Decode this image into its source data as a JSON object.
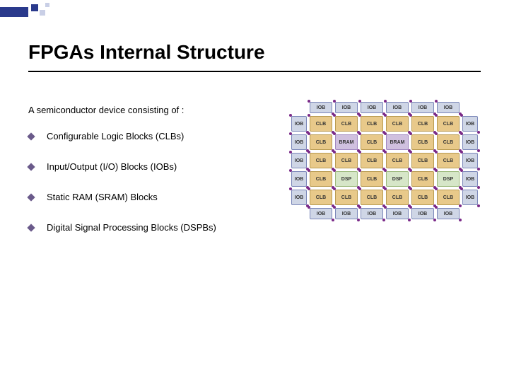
{
  "accent_color": "#2a3a8c",
  "accent_light": "#c9cfe6",
  "title": "FPGAs Internal Structure",
  "intro": "A semiconductor device consisting of :",
  "bullet_marker_color": "#6a5a8a",
  "bullets": [
    "Configurable Logic Blocks (CLBs)",
    "Input/Output (I/O) Blocks (IOBs)",
    "Static RAM (SRAM) Blocks",
    "Digital Signal Processing Blocks (DSPBs)"
  ],
  "diagram": {
    "interconnect_color": "#7a2a88",
    "block_types": {
      "IOB": {
        "fill": "#cfd6e6",
        "border": "#7a86b8",
        "text": "#333"
      },
      "CLB": {
        "fill": "#e8c98a",
        "border": "#b89a50",
        "text": "#333"
      },
      "BRAM": {
        "fill": "#d0c0df",
        "border": "#a086c0",
        "text": "#333"
      },
      "DSP": {
        "fill": "#d6e6c8",
        "border": "#9ab87a",
        "text": "#333"
      }
    },
    "top_row": [
      "IOB",
      "IOB",
      "IOB",
      "IOB",
      "IOB",
      "IOB"
    ],
    "bottom_row": [
      "IOB",
      "IOB",
      "IOB",
      "IOB",
      "IOB",
      "IOB"
    ],
    "main_rows": [
      {
        "left": "IOB",
        "cells": [
          "CLB",
          "CLB",
          "CLB",
          "CLB",
          "CLB",
          "CLB"
        ],
        "right": "IOB"
      },
      {
        "left": "IOB",
        "cells": [
          "CLB",
          "BRAM",
          "CLB",
          "BRAM",
          "CLB",
          "CLB"
        ],
        "right": "IOB"
      },
      {
        "left": "IOB",
        "cells": [
          "CLB",
          "CLB",
          "CLB",
          "CLB",
          "CLB",
          "CLB"
        ],
        "right": "IOB"
      },
      {
        "left": "IOB",
        "cells": [
          "CLB",
          "DSP",
          "CLB",
          "DSP",
          "CLB",
          "DSP"
        ],
        "right": "IOB"
      },
      {
        "left": "IOB",
        "cells": [
          "CLB",
          "CLB",
          "CLB",
          "CLB",
          "CLB",
          "CLB"
        ],
        "right": "IOB"
      }
    ]
  }
}
